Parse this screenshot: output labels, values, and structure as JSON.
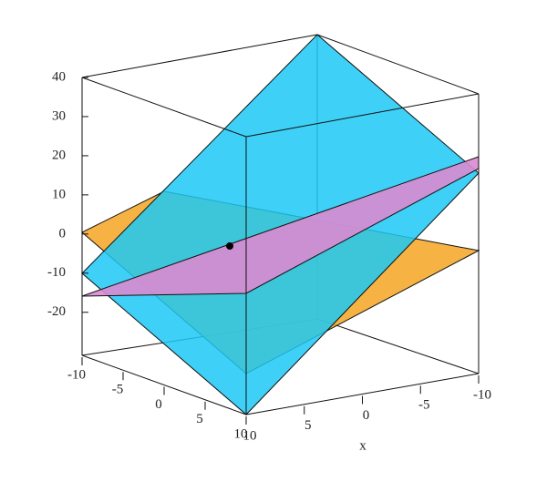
{
  "chart_data": {
    "type": "plot3d",
    "zlim": [
      -31,
      40
    ],
    "zticks": [
      40,
      30,
      20,
      10,
      0,
      -10,
      -20
    ],
    "xlim": [
      -10,
      10
    ],
    "xticks": [
      -10,
      -5,
      0,
      5,
      10
    ],
    "ylim": [
      10,
      -10
    ],
    "yticks": [
      10,
      5,
      0,
      -5,
      -10
    ],
    "xlabel": "x"
  }
}
